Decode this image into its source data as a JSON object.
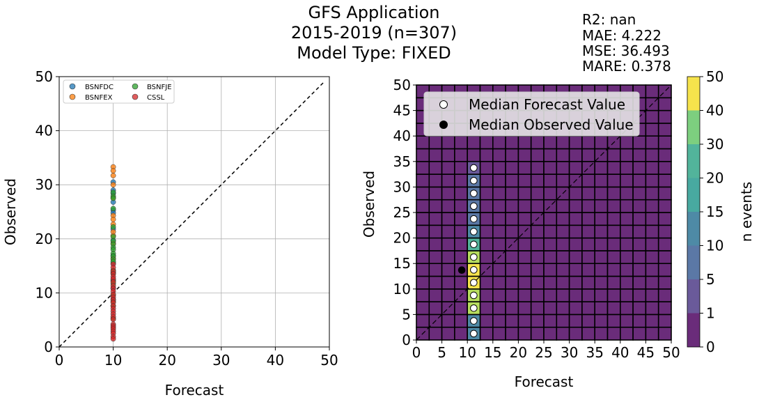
{
  "figure": {
    "title_lines": [
      "GFS Application",
      "2015-2019 (n=307)",
      "Model Type: FIXED"
    ],
    "stats_lines": [
      "R2: nan",
      "MAE: 4.222",
      "MSE: 36.493",
      "MARE: 0.378"
    ]
  },
  "chart_data": [
    {
      "type": "scatter",
      "xlabel": "Forecast",
      "ylabel": "Observed",
      "xlim": [
        0,
        50
      ],
      "ylim": [
        0,
        50
      ],
      "xticks": [
        "0",
        "10",
        "20",
        "30",
        "40",
        "50"
      ],
      "yticks": [
        "0",
        "10",
        "20",
        "30",
        "40",
        "50"
      ],
      "grid": true,
      "legend_position": "top-left",
      "one_to_one_line": true,
      "series": [
        {
          "name": "BSNFDC",
          "color": "#1f77b4",
          "x": [
            10,
            10,
            10,
            10,
            10,
            10,
            10,
            10,
            10,
            10,
            10,
            10,
            10,
            10
          ],
          "y": [
            30.5,
            29,
            28.4,
            26.8,
            25.3,
            24.8,
            21.8,
            19.7,
            16.9,
            15.5,
            13.8,
            12.4,
            10.9,
            8.8
          ]
        },
        {
          "name": "BSNFEX",
          "color": "#ff7f0e",
          "x": [
            10,
            10,
            10,
            10,
            10,
            10,
            10,
            10,
            10,
            10,
            10,
            10
          ],
          "y": [
            33.3,
            32.6,
            31.7,
            30,
            27.6,
            24.3,
            23.6,
            22.7,
            21.3,
            20.6,
            19.2,
            16.4
          ]
        },
        {
          "name": "BSNFJE",
          "color": "#2ca02c",
          "x": [
            10,
            10,
            10,
            10,
            10,
            10,
            10,
            10,
            10,
            10,
            10,
            10,
            10,
            10,
            10,
            10,
            10,
            10,
            10,
            10,
            10,
            10
          ],
          "y": [
            28.6,
            27.9,
            27.5,
            25.6,
            22.2,
            20.4,
            19.6,
            19,
            18.4,
            18,
            17.3,
            16.8,
            16.2,
            15.8,
            14.2,
            13.6,
            12.2,
            11.7,
            9.6,
            8.4,
            7.6,
            5.3
          ]
        },
        {
          "name": "CSSL",
          "color": "#d62728",
          "x": [
            10,
            10,
            10,
            10,
            10,
            10,
            10,
            10,
            10,
            10,
            10,
            10,
            10,
            10,
            10,
            10,
            10,
            10,
            10,
            10,
            10,
            10,
            10,
            10,
            10,
            10,
            10,
            10
          ],
          "y": [
            15.3,
            14.7,
            14,
            13.5,
            13,
            12.6,
            12,
            11.3,
            10.8,
            10.3,
            9.7,
            9.2,
            8.7,
            8.2,
            7.6,
            7.1,
            6.6,
            6.1,
            5.6,
            5.1,
            4.2,
            3.9,
            3.6,
            3.3,
            2.9,
            2.5,
            1.9,
            1.5
          ]
        }
      ]
    },
    {
      "type": "heatmap",
      "xlabel": "Forecast",
      "ylabel": "Observed",
      "xlim": [
        0,
        50
      ],
      "ylim": [
        0,
        50
      ],
      "bin_width": 2.5,
      "xticks": [
        "0",
        "5",
        "10",
        "15",
        "20",
        "25",
        "30",
        "35",
        "40",
        "45",
        "50"
      ],
      "yticks": [
        "0",
        "5",
        "10",
        "15",
        "20",
        "25",
        "30",
        "35",
        "40",
        "45",
        "50"
      ],
      "background_color": "#6a2c7a",
      "one_to_one_line": true,
      "cells": [
        {
          "x": 11.25,
          "y": 1.25,
          "color": "#4e8aa6"
        },
        {
          "x": 11.25,
          "y": 3.75,
          "color": "#4e8aa6"
        },
        {
          "x": 11.25,
          "y": 6.25,
          "color": "#b7dd5e"
        },
        {
          "x": 11.25,
          "y": 8.75,
          "color": "#b7dd5e"
        },
        {
          "x": 11.25,
          "y": 11.25,
          "color": "#f6e34c"
        },
        {
          "x": 11.25,
          "y": 13.75,
          "color": "#f6e34c"
        },
        {
          "x": 11.25,
          "y": 16.25,
          "color": "#b7dd5e"
        },
        {
          "x": 11.25,
          "y": 18.75,
          "color": "#52b49b"
        },
        {
          "x": 11.25,
          "y": 21.25,
          "color": "#4e8aa6"
        },
        {
          "x": 11.25,
          "y": 23.75,
          "color": "#5b78a6"
        },
        {
          "x": 11.25,
          "y": 26.25,
          "color": "#5b78a6"
        },
        {
          "x": 11.25,
          "y": 28.75,
          "color": "#5b78a6"
        },
        {
          "x": 11.25,
          "y": 31.25,
          "color": "#5b78a6"
        },
        {
          "x": 11.25,
          "y": 33.75,
          "color": "#6a5a9a"
        }
      ],
      "median_forecast": {
        "label": "Median Forecast Value",
        "x": [
          11.25,
          11.25,
          11.25,
          11.25,
          11.25,
          11.25,
          11.25,
          11.25,
          11.25,
          11.25,
          11.25,
          11.25,
          11.25,
          11.25
        ],
        "y": [
          1.25,
          3.75,
          6.25,
          8.75,
          11.25,
          13.75,
          16.25,
          18.75,
          21.25,
          23.75,
          26.25,
          28.75,
          31.25,
          33.75
        ]
      },
      "median_observed": {
        "label": "Median Observed Value",
        "x": [
          8.9
        ],
        "y": [
          13.7
        ]
      },
      "colorbar": {
        "label": "n events",
        "bounds": [
          0,
          1,
          5,
          10,
          15,
          20,
          30,
          40,
          50
        ],
        "tick_labels": [
          "0",
          "1",
          "5",
          "10",
          "15",
          "20",
          "30",
          "40",
          "50"
        ],
        "colors": [
          "#6a2c7a",
          "#6a5a9a",
          "#5b78a6",
          "#4e8aa6",
          "#48a9a0",
          "#52b49b",
          "#7dcf7f",
          "#b7dd5e",
          "#f6e34c"
        ]
      }
    }
  ]
}
